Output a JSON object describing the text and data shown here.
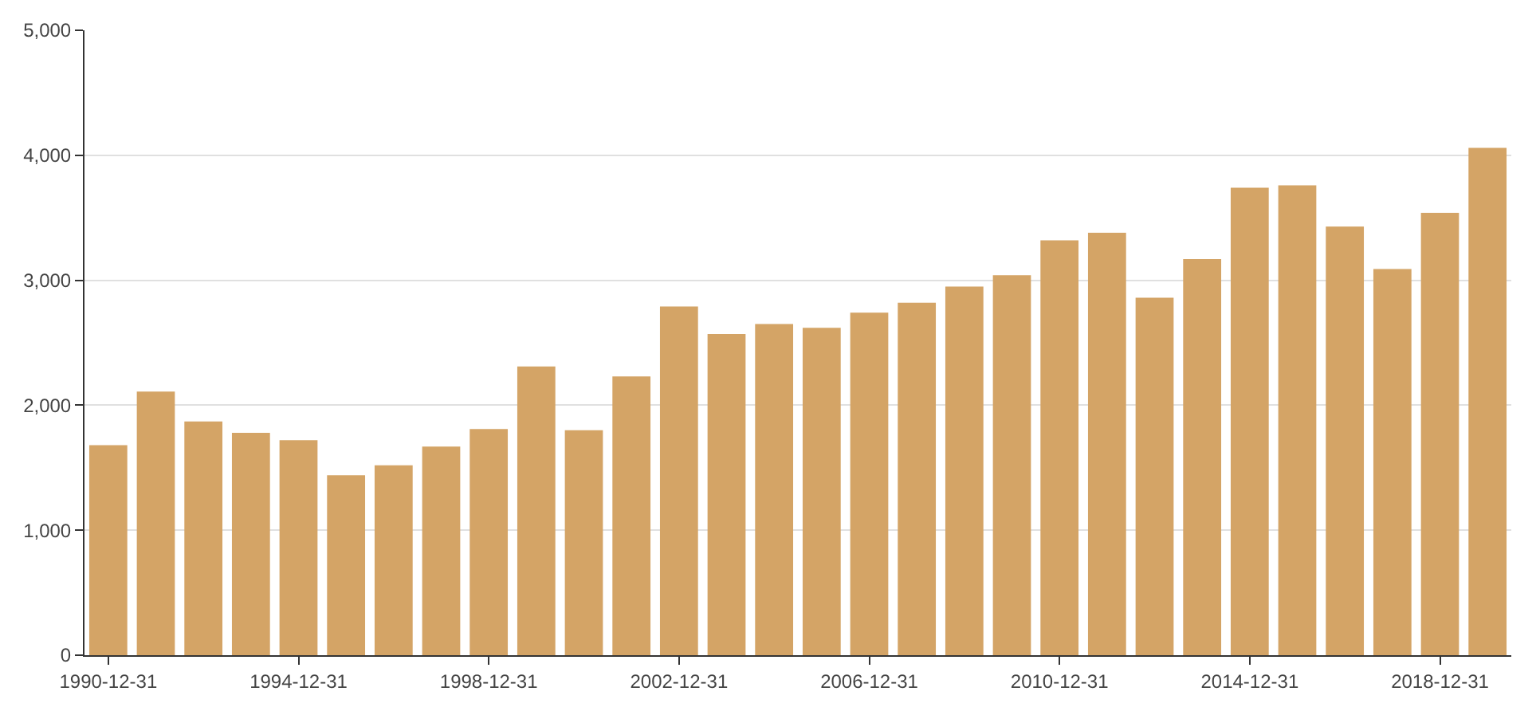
{
  "chart_data": {
    "type": "bar",
    "categories": [
      "1990-12-31",
      null,
      null,
      null,
      "1994-12-31",
      null,
      null,
      null,
      "1998-12-31",
      null,
      null,
      null,
      "2002-12-31",
      null,
      null,
      null,
      "2006-12-31",
      null,
      null,
      null,
      "2010-12-31",
      null,
      null,
      null,
      "2014-12-31",
      null,
      null,
      null,
      "2018-12-31",
      null
    ],
    "values": [
      1680,
      2110,
      1870,
      1780,
      1720,
      1440,
      1520,
      1670,
      1810,
      2310,
      1800,
      2230,
      2790,
      2570,
      2650,
      2620,
      2740,
      2820,
      2950,
      3040,
      3320,
      3380,
      2860,
      3170,
      3740,
      3760,
      3430,
      3090,
      3540,
      4060
    ],
    "color": "#d4a466",
    "ylim": [
      0,
      5000
    ],
    "yticks": [
      0,
      {
        "value": 1000,
        "label": "1,000"
      },
      {
        "value": 2000,
        "label": "2,000"
      },
      {
        "value": 3000,
        "label": "3,000"
      },
      {
        "value": 4000,
        "label": "4,000"
      },
      {
        "value": 5000,
        "label": "5,000"
      }
    ],
    "grid": "y"
  }
}
